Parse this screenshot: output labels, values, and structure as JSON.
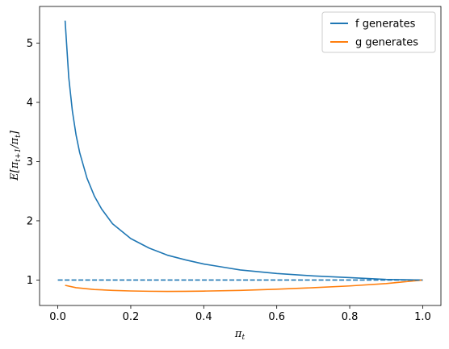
{
  "chart_data": {
    "type": "line",
    "title": "",
    "xlabel": "π_t",
    "ylabel": "E[π_{t+1}/π_t]",
    "xlim": [
      -0.05,
      1.05
    ],
    "ylim": [
      0.57,
      5.62
    ],
    "xticks": [
      "0.0",
      "0.2",
      "0.4",
      "0.6",
      "0.8",
      "1.0"
    ],
    "xtick_values": [
      0.0,
      0.2,
      0.4,
      0.6,
      0.8,
      1.0
    ],
    "yticks": [
      "1",
      "2",
      "3",
      "4",
      "5"
    ],
    "ytick_values": [
      1,
      2,
      3,
      4,
      5
    ],
    "grid": false,
    "legend_position": "top-right",
    "series": [
      {
        "name": "f generates",
        "color": "#1f77b4",
        "style": "solid",
        "x": [
          0.02,
          0.03,
          0.04,
          0.05,
          0.06,
          0.08,
          0.1,
          0.12,
          0.15,
          0.2,
          0.25,
          0.3,
          0.35,
          0.4,
          0.45,
          0.5,
          0.6,
          0.7,
          0.8,
          0.9,
          1.0
        ],
        "y": [
          5.38,
          4.42,
          3.85,
          3.45,
          3.15,
          2.72,
          2.42,
          2.2,
          1.95,
          1.7,
          1.54,
          1.42,
          1.34,
          1.27,
          1.22,
          1.17,
          1.11,
          1.07,
          1.04,
          1.01,
          1.0
        ]
      },
      {
        "name": "g generates",
        "color": "#ff7f0e",
        "style": "solid",
        "x": [
          0.02,
          0.05,
          0.1,
          0.15,
          0.2,
          0.25,
          0.3,
          0.35,
          0.4,
          0.5,
          0.6,
          0.7,
          0.8,
          0.9,
          1.0
        ],
        "y": [
          0.91,
          0.87,
          0.84,
          0.825,
          0.815,
          0.81,
          0.808,
          0.809,
          0.813,
          0.825,
          0.845,
          0.87,
          0.9,
          0.94,
          1.0
        ]
      },
      {
        "name": "",
        "color": "#1f77b4",
        "style": "dashed",
        "x": [
          0.0,
          1.0
        ],
        "y": [
          1.0,
          1.0
        ]
      }
    ]
  }
}
